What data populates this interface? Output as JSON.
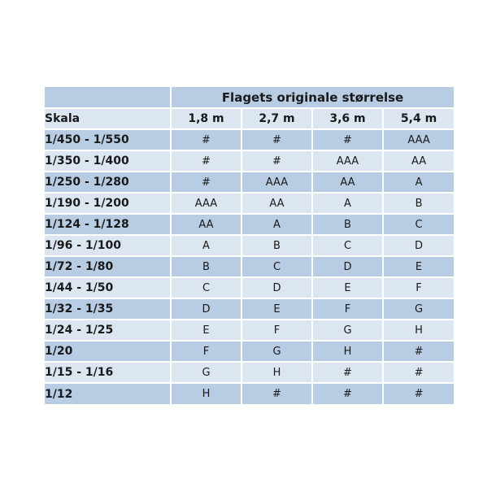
{
  "page": {
    "background_color": "#ffffff"
  },
  "table": {
    "title": "Flagets originale størrelse",
    "row_header_label": "Skala",
    "columns": [
      "1,8 m",
      "2,7 m",
      "3,6 m",
      "5,4 m"
    ],
    "rows": [
      {
        "label": "1/450 - 1/550",
        "values": [
          "#",
          "#",
          "#",
          "AAA"
        ]
      },
      {
        "label": "1/350 - 1/400",
        "values": [
          "#",
          "#",
          "AAA",
          "AA"
        ]
      },
      {
        "label": "1/250 - 1/280",
        "values": [
          "#",
          "AAA",
          "AA",
          "A"
        ]
      },
      {
        "label": "1/190 - 1/200",
        "values": [
          "AAA",
          "AA",
          "A",
          "B"
        ]
      },
      {
        "label": "1/124 - 1/128",
        "values": [
          "AA",
          "A",
          "B",
          "C"
        ]
      },
      {
        "label": "1/96 - 1/100",
        "values": [
          "A",
          "B",
          "C",
          "D"
        ]
      },
      {
        "label": "1/72 - 1/80",
        "values": [
          "B",
          "C",
          "D",
          "E"
        ]
      },
      {
        "label": "1/44 - 1/50",
        "values": [
          "C",
          "D",
          "E",
          "F"
        ]
      },
      {
        "label": "1/32 - 1/35",
        "values": [
          "D",
          "E",
          "F",
          "G"
        ]
      },
      {
        "label": "1/24 - 1/25",
        "values": [
          "E",
          "F",
          "G",
          "H"
        ]
      },
      {
        "label": "1/20",
        "values": [
          "F",
          "G",
          "H",
          "#"
        ]
      },
      {
        "label": "1/15 - 1/16",
        "values": [
          "G",
          "H",
          "#",
          "#"
        ]
      },
      {
        "label": "1/12",
        "values": [
          "H",
          "#",
          "#",
          "#"
        ]
      }
    ],
    "colors": {
      "dark_row": "#b8cce4",
      "light_row": "#dce6f1",
      "grid": "#ffffff",
      "text": "#1a1a1a"
    }
  }
}
